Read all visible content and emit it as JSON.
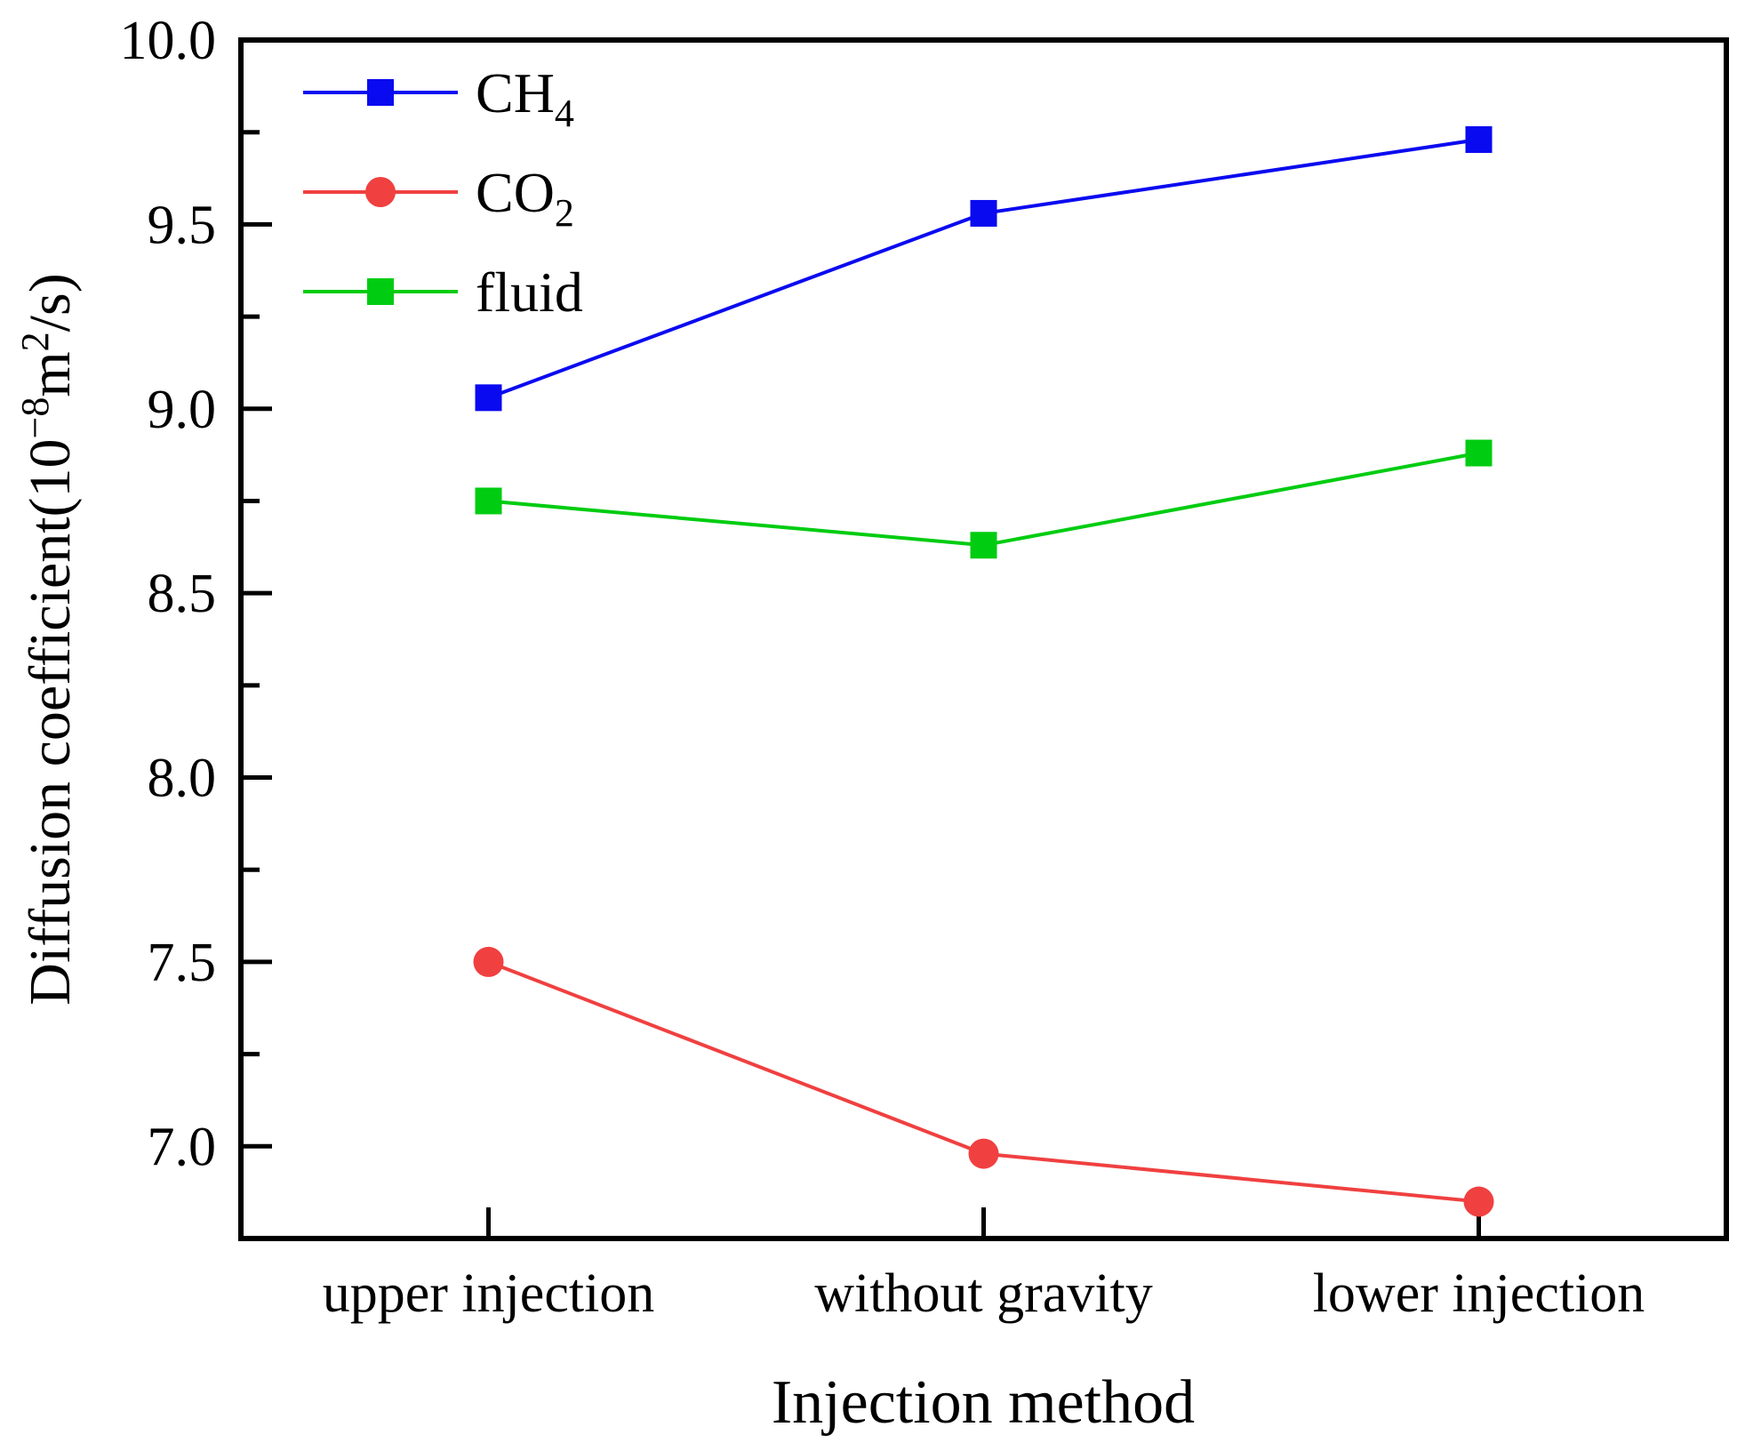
{
  "chart_data": {
    "type": "line",
    "title": "",
    "xlabel": "Injection method",
    "ylabel": "Diffusion coefficient(10−8m2/s)",
    "ylabel_parts": [
      {
        "t": "Diffusion coefficient(10"
      },
      {
        "t": "−8",
        "sup": true
      },
      {
        "t": "m"
      },
      {
        "t": "2",
        "sup": true
      },
      {
        "t": "/s)"
      }
    ],
    "categories": [
      "upper injection",
      "without gravity",
      "lower injection"
    ],
    "series": [
      {
        "name": "CH4",
        "label_base": "CH",
        "label_sub": "4",
        "marker": "square",
        "color": "#0a0af0",
        "values": [
          9.03,
          9.53,
          9.73
        ]
      },
      {
        "name": "CO2",
        "label_base": "CO",
        "label_sub": "2",
        "marker": "circle",
        "color": "#f04040",
        "values": [
          7.5,
          6.98,
          6.85
        ]
      },
      {
        "name": "fluid",
        "label_base": "fluid",
        "label_sub": "",
        "marker": "square",
        "color": "#00cc11",
        "values": [
          8.75,
          8.63,
          8.88
        ]
      }
    ],
    "ylim": [
      6.75,
      10.0
    ],
    "yticks": [
      "7.0",
      "7.5",
      "8.0",
      "8.5",
      "9.0",
      "9.5",
      "10.0"
    ],
    "yticks_minor": [
      7.25,
      7.75,
      8.25,
      8.75,
      9.25,
      9.75
    ],
    "legend_position": "top-left",
    "grid": false,
    "axis_color": "#000000"
  }
}
